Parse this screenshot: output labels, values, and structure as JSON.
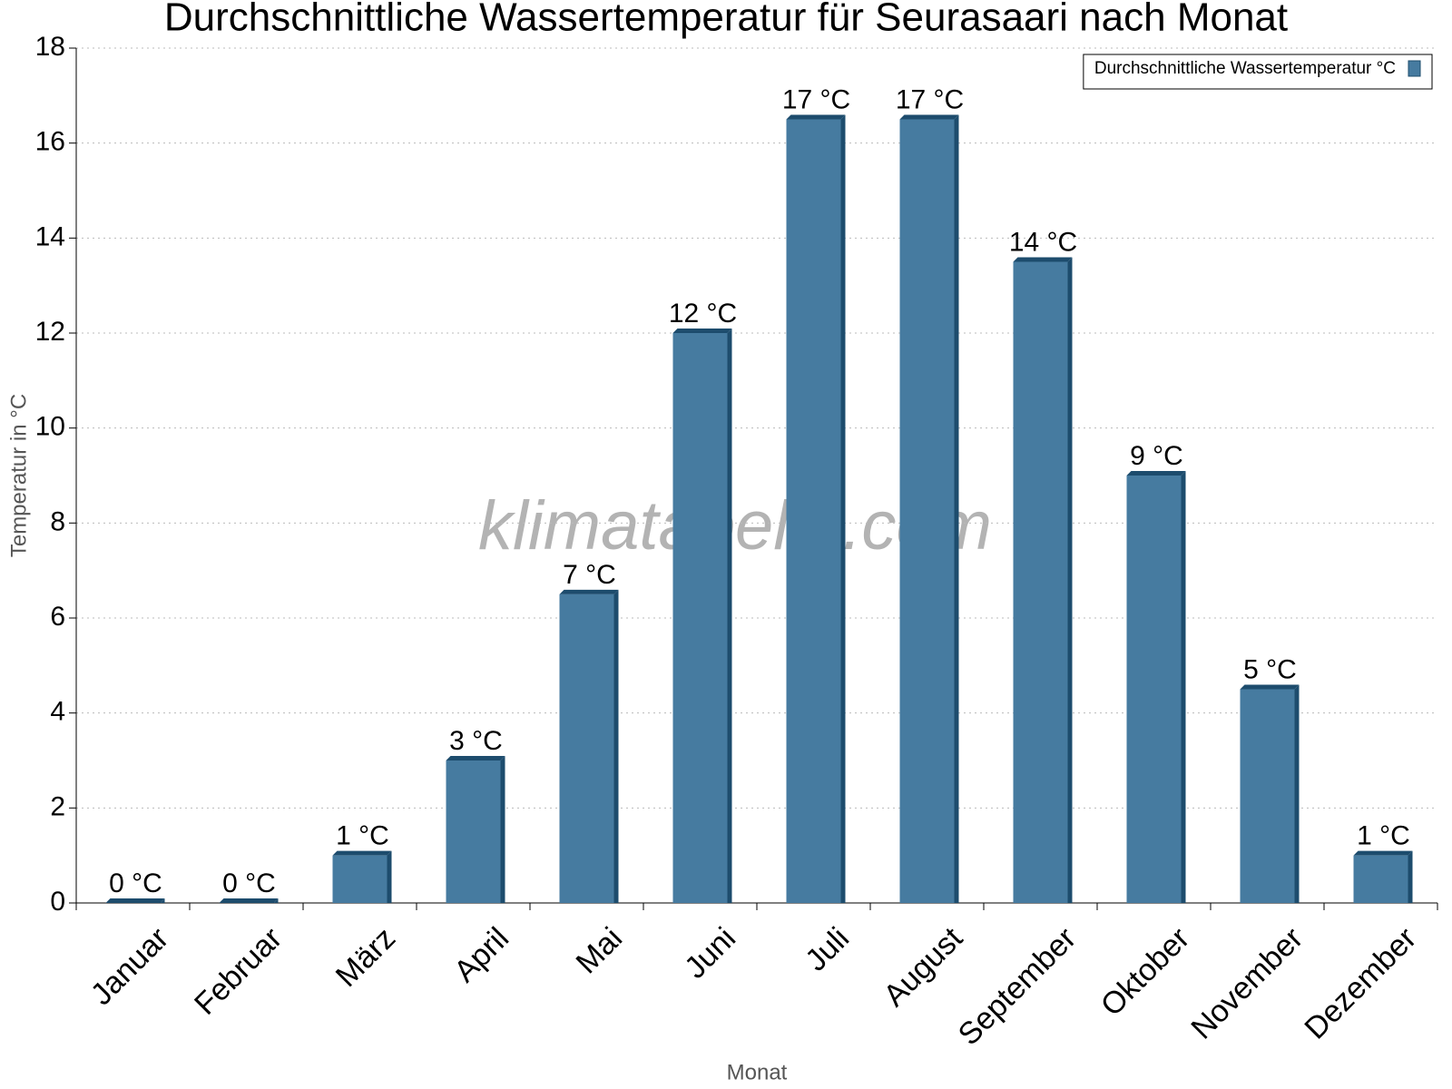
{
  "chart_data": {
    "type": "bar",
    "title": "Durchschnittliche Wassertemperatur für Seurasaari nach Monat",
    "x_label": "Monat",
    "y_label": "Temperatur in °C",
    "watermark": "klimatabelle.com",
    "categories": [
      "Januar",
      "Februar",
      "März",
      "April",
      "Mai",
      "Juni",
      "Juli",
      "August",
      "September",
      "Oktober",
      "November",
      "Dezember"
    ],
    "series": [
      {
        "name": "Durchschnittliche Wassertemperatur °C",
        "color": "#467ba0",
        "values": [
          0,
          0,
          1,
          3,
          6.5,
          12,
          16.5,
          16.5,
          13.5,
          9,
          4.5,
          1
        ],
        "value_labels": [
          "0 °C",
          "0 °C",
          "1 °C",
          "3 °C",
          "7 °C",
          "12 °C",
          "17 °C",
          "17 °C",
          "14 °C",
          "9 °C",
          "5 °C",
          "1 °C"
        ]
      }
    ],
    "ylim": [
      0,
      18
    ],
    "yticks": [
      0,
      2,
      4,
      6,
      8,
      10,
      12,
      14,
      16,
      18
    ],
    "grid": true,
    "legend": "top-right"
  }
}
